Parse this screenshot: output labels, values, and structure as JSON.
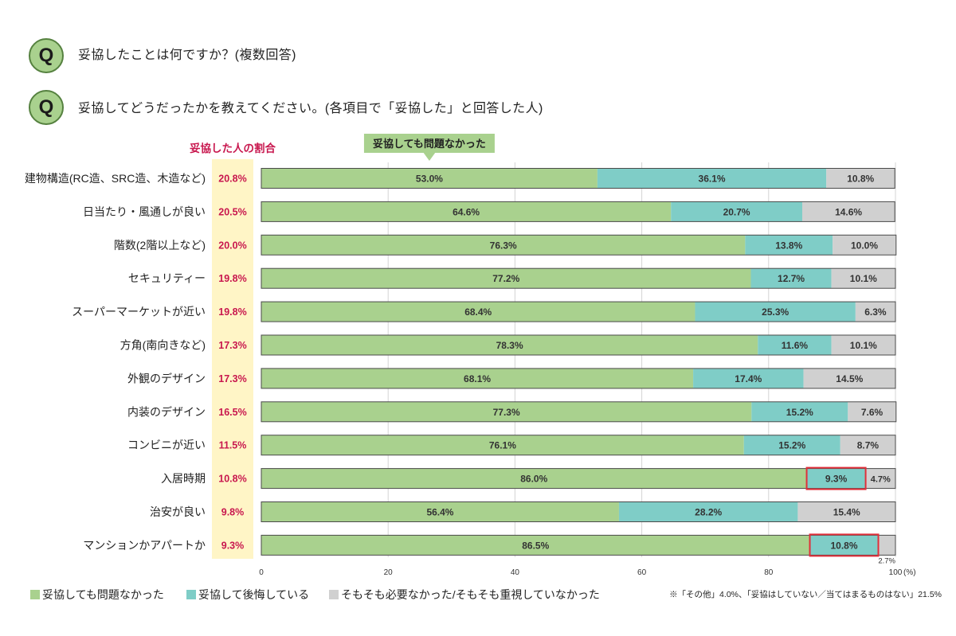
{
  "questions": [
    {
      "badge": "Q",
      "text": "妥協したことは何ですか？(複数回答)"
    },
    {
      "badge": "Q",
      "text": "妥協してどうだったかを教えてください。(各項目で「妥協した」と回答した人)"
    }
  ],
  "colors": {
    "accent_green": "#a9d18e",
    "teal": "#7fcdc7",
    "gray": "#d0d0d0",
    "rate_red": "#c8174e",
    "rate_column_bg": "#fff5c6",
    "highlight_red": "#e0303a"
  },
  "footnote": "※「その他」4.0%、「妥協はしていない／当てはまるものはない」21.5%",
  "chart_data": {
    "type": "bar",
    "orientation": "horizontal",
    "stacked": true,
    "categories": [
      "建物構造(RC造、SRC造、木造など)",
      "日当たり・風通しが良い",
      "階数(2階以上など)",
      "セキュリティー",
      "スーパーマーケットが近い",
      "方角(南向きなど)",
      "外観のデザイン",
      "内装のデザイン",
      "コンビニが近い",
      "入居時期",
      "治安が良い",
      "マンションかアパートか"
    ],
    "series": [
      {
        "name": "妥協しても問題なかった",
        "color": "#a9d18e",
        "values": [
          53.0,
          64.6,
          76.3,
          77.2,
          68.4,
          78.3,
          68.1,
          77.3,
          76.1,
          86.0,
          56.4,
          86.5
        ]
      },
      {
        "name": "妥協して後悔している",
        "color": "#7fcdc7",
        "values": [
          36.1,
          20.7,
          13.8,
          12.7,
          25.3,
          11.6,
          17.4,
          15.2,
          15.2,
          9.3,
          28.2,
          10.8
        ]
      },
      {
        "name": "そもそも必要なかった/そもそも重視していなかった",
        "color": "#d0d0d0",
        "values": [
          10.8,
          14.6,
          10.0,
          10.1,
          6.3,
          10.1,
          14.5,
          7.6,
          8.7,
          4.7,
          15.4,
          2.7
        ]
      }
    ],
    "rate_column": {
      "label": "妥協した人の割合",
      "values": [
        20.8,
        20.5,
        20.0,
        19.8,
        19.8,
        17.3,
        17.3,
        16.5,
        11.5,
        10.8,
        9.8,
        9.3
      ]
    },
    "callout": "妥協しても問題なかった",
    "highlights": [
      {
        "row": 9,
        "series": 1
      },
      {
        "row": 11,
        "series": 1
      }
    ],
    "x_ticks": [
      0,
      20,
      40,
      60,
      80,
      100
    ],
    "x_unit": "(%)",
    "xlim": [
      0,
      100
    ],
    "grid": true,
    "legend_position": "bottom"
  }
}
